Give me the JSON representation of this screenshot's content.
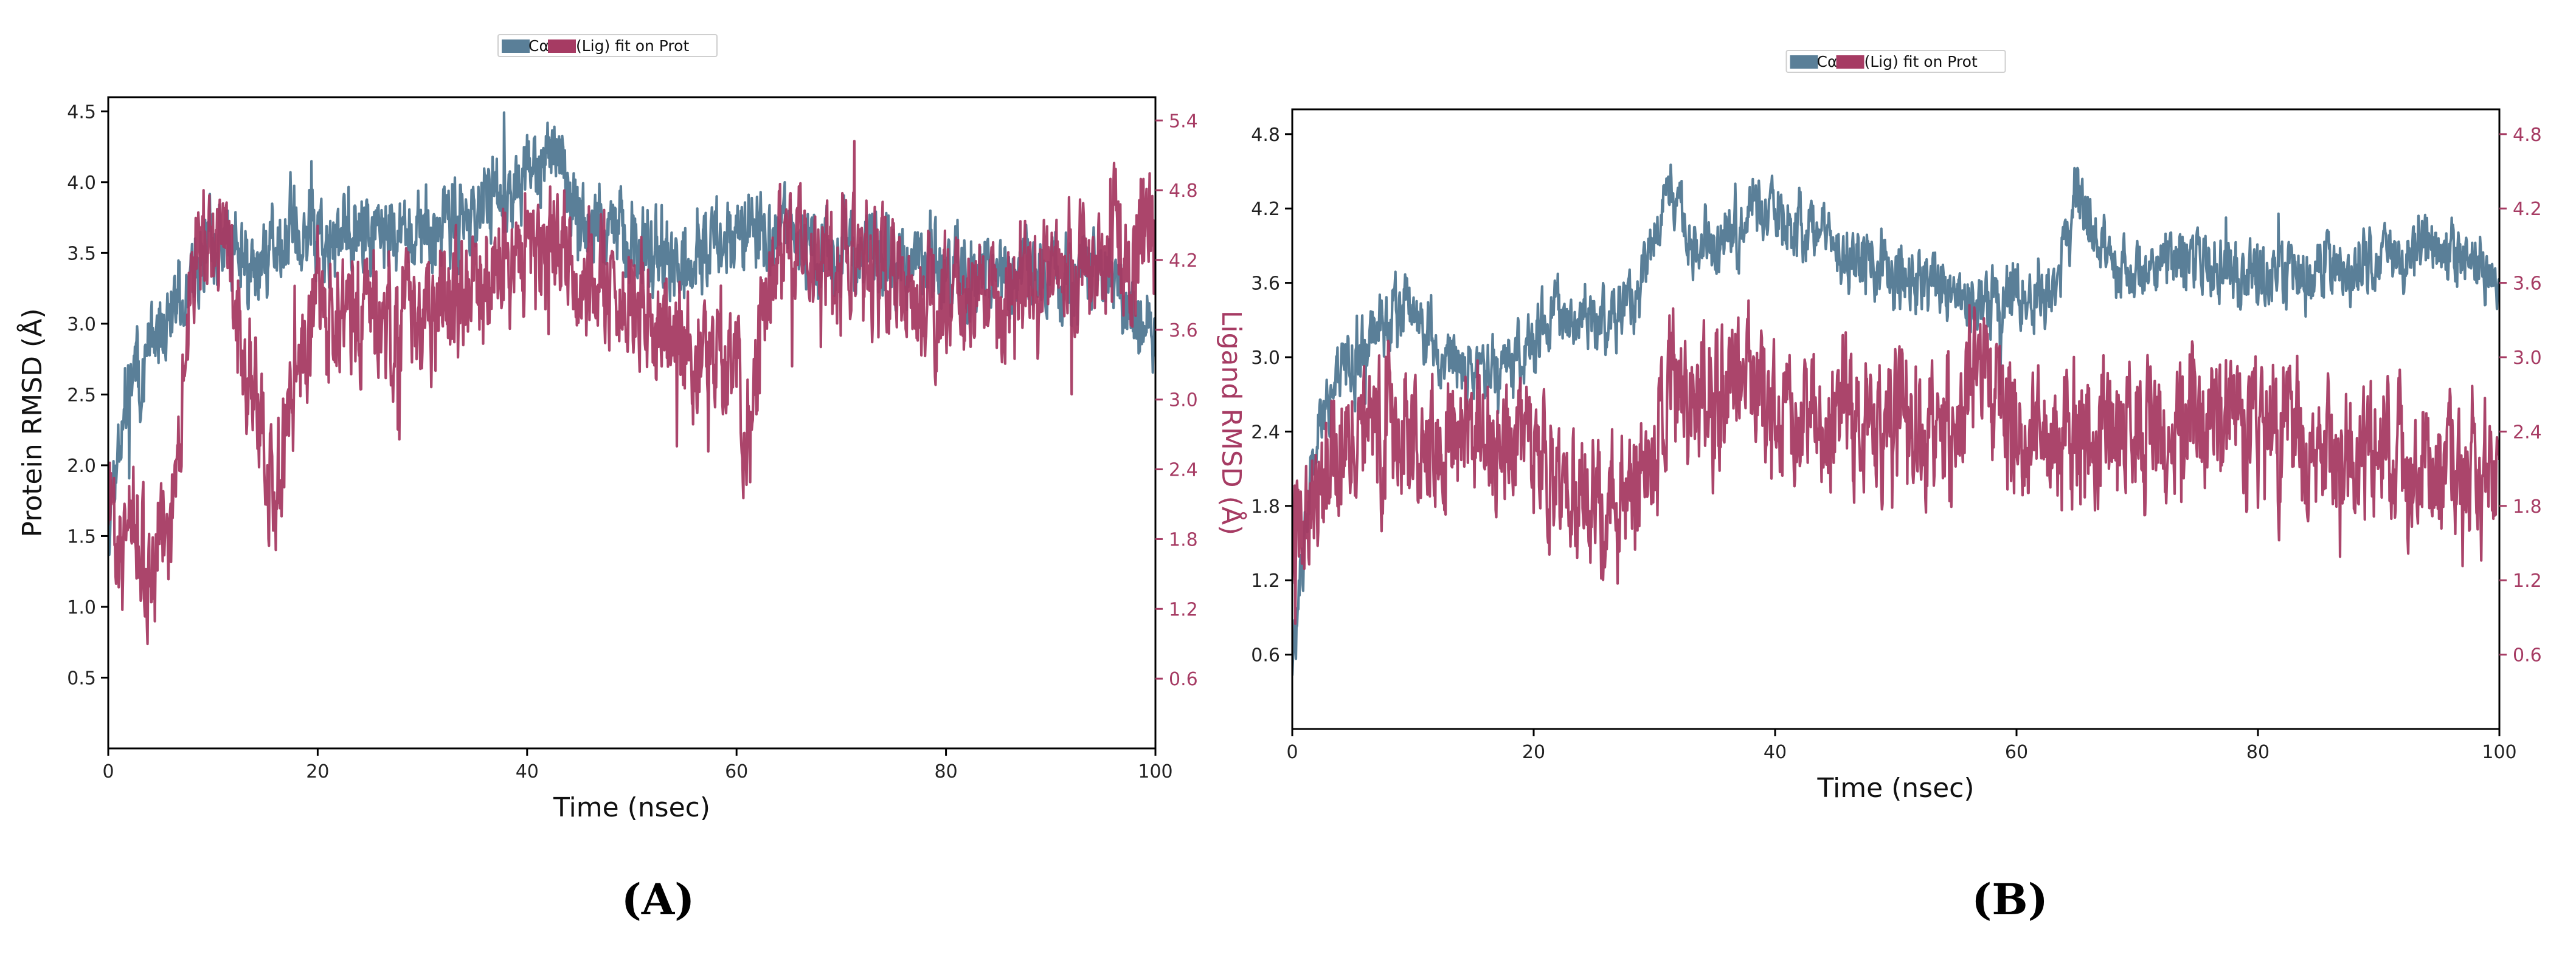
{
  "colors": {
    "protein": "#5a7f98",
    "ligand": "#a63b63",
    "axis": "#000000",
    "background": "#ffffff"
  },
  "chart_data": [
    {
      "type": "line",
      "panel_label": "(A)",
      "legend": {
        "protein_entry": "Cα",
        "ligand_entry": "(Lig) fit on Prot",
        "placement": "top-center"
      },
      "xlabel": "Time (nsec)",
      "ylabel_left": "Protein RMSD (Å)",
      "ylabel_right": "Ligand RMSD (Å)",
      "xlim": [
        0,
        100
      ],
      "ylim_left": [
        0,
        4.6
      ],
      "ylim_right": [
        0,
        5.6
      ],
      "xticks": [
        "0",
        "20",
        "40",
        "60",
        "80",
        "100"
      ],
      "yticks_left": [
        "0.5",
        "1.0",
        "1.5",
        "2.0",
        "2.5",
        "3.0",
        "3.5",
        "4.0",
        "4.5"
      ],
      "yticks_right": [
        "0.6",
        "1.2",
        "1.8",
        "2.4",
        "3.0",
        "3.6",
        "4.2",
        "4.8",
        "5.4"
      ],
      "grid": false,
      "series": [
        {
          "name": "Cα",
          "axis": "left",
          "x": [
            0,
            2,
            4,
            6,
            8,
            10,
            12,
            14,
            16,
            18,
            20,
            25,
            30,
            35,
            40,
            43,
            45,
            50,
            55,
            60,
            65,
            70,
            75,
            80,
            85,
            90,
            95,
            98,
            100
          ],
          "y": [
            1.7,
            2.6,
            2.8,
            3.1,
            3.3,
            3.6,
            3.5,
            3.4,
            3.5,
            3.7,
            3.6,
            3.7,
            3.6,
            3.8,
            4.0,
            4.3,
            3.7,
            3.6,
            3.4,
            3.7,
            3.6,
            3.5,
            3.5,
            3.4,
            3.4,
            3.3,
            3.4,
            3.0,
            2.9
          ]
        },
        {
          "name": "(Lig) fit on Prot",
          "axis": "right",
          "x": [
            0,
            2,
            4,
            6,
            8,
            10,
            12,
            14,
            16,
            18,
            20,
            25,
            30,
            35,
            40,
            45,
            50,
            55,
            57,
            60,
            61,
            63,
            65,
            70,
            75,
            80,
            85,
            90,
            95,
            100
          ],
          "y": [
            2.0,
            1.9,
            1.6,
            1.8,
            4.0,
            4.6,
            3.9,
            3.0,
            2.2,
            3.2,
            3.8,
            3.7,
            3.6,
            4.0,
            4.3,
            4.1,
            3.8,
            3.6,
            3.2,
            3.5,
            2.6,
            4.0,
            4.3,
            4.2,
            4.0,
            3.8,
            3.9,
            4.0,
            4.2,
            4.4
          ]
        }
      ]
    },
    {
      "type": "line",
      "panel_label": "(B)",
      "legend": {
        "protein_entry": "Cα",
        "ligand_entry": "(Lig) fit on Prot",
        "placement": "top-center"
      },
      "xlabel": "Time (nsec)",
      "ylabel_left": "",
      "ylabel_right": "",
      "xlim": [
        0,
        100
      ],
      "ylim_left": [
        0,
        5.0
      ],
      "ylim_right": [
        0,
        5.0
      ],
      "xticks": [
        "0",
        "20",
        "40",
        "60",
        "80",
        "100"
      ],
      "yticks_left": [
        "0.6",
        "1.2",
        "1.8",
        "2.4",
        "3.0",
        "3.6",
        "4.2",
        "4.8"
      ],
      "yticks_right": [
        "0.6",
        "1.2",
        "1.8",
        "2.4",
        "3.0",
        "3.6",
        "4.2",
        "4.8"
      ],
      "grid": false,
      "series": [
        {
          "name": "Cα",
          "axis": "left",
          "x": [
            0,
            2,
            4,
            6,
            8,
            10,
            12,
            15,
            18,
            20,
            22,
            25,
            28,
            30,
            31,
            33,
            35,
            38,
            40,
            45,
            50,
            55,
            58,
            60,
            63,
            65,
            68,
            70,
            75,
            80,
            85,
            90,
            95,
            100
          ],
          "y": [
            0.5,
            2.4,
            2.9,
            3.1,
            3.3,
            3.5,
            3.0,
            2.9,
            3.0,
            3.1,
            3.3,
            3.3,
            3.4,
            3.9,
            4.5,
            3.8,
            3.9,
            4.1,
            4.2,
            3.9,
            3.7,
            3.5,
            3.4,
            3.5,
            3.5,
            4.3,
            3.8,
            3.7,
            3.8,
            3.6,
            3.7,
            3.8,
            3.9,
            3.7
          ]
        },
        {
          "name": "(Lig) fit on Prot",
          "axis": "right",
          "x": [
            0,
            2,
            4,
            6,
            8,
            10,
            15,
            20,
            25,
            28,
            30,
            32,
            35,
            38,
            40,
            45,
            50,
            55,
            57,
            60,
            65,
            70,
            75,
            80,
            85,
            90,
            95,
            100
          ],
          "y": [
            1.5,
            2.0,
            2.2,
            2.6,
            2.4,
            2.4,
            2.3,
            2.2,
            1.8,
            1.7,
            2.5,
            2.8,
            2.6,
            3.0,
            2.6,
            2.5,
            2.4,
            2.3,
            3.1,
            2.4,
            2.3,
            2.4,
            2.5,
            2.4,
            2.2,
            2.2,
            2.1,
            2.0
          ]
        }
      ]
    }
  ]
}
